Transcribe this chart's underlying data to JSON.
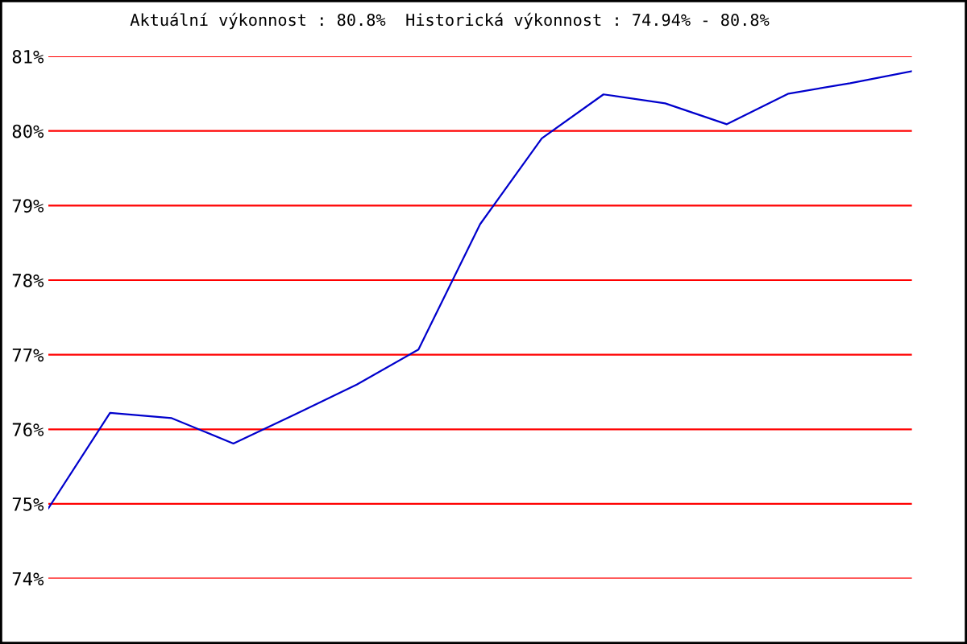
{
  "chart_data": {
    "type": "line",
    "title": "Aktuální výkonnost : 80.8%  Historická výkonnost : 74.94% - 80.8%",
    "categories": [
      null,
      null,
      null,
      null,
      null,
      null,
      null,
      null,
      null,
      null,
      null,
      null,
      null,
      null,
      null
    ],
    "series": [
      {
        "color": "#0000cc",
        "values": [
          74.94,
          76.22,
          76.15,
          75.81,
          76.2,
          76.6,
          77.07,
          78.75,
          79.9,
          80.49,
          80.37,
          80.09,
          80.5,
          80.64,
          80.8
        ]
      }
    ],
    "ylim": [
      74,
      81
    ],
    "yticks": [
      {
        "value": 74,
        "label": "74%"
      },
      {
        "value": 75,
        "label": "75%"
      },
      {
        "value": 76,
        "label": "76%"
      },
      {
        "value": 77,
        "label": "77%"
      },
      {
        "value": 78,
        "label": "78%"
      },
      {
        "value": 79,
        "label": "79%"
      },
      {
        "value": 80,
        "label": "80%"
      },
      {
        "value": 81,
        "label": "81%"
      }
    ],
    "grid": "y",
    "tick_labels": "y"
  }
}
